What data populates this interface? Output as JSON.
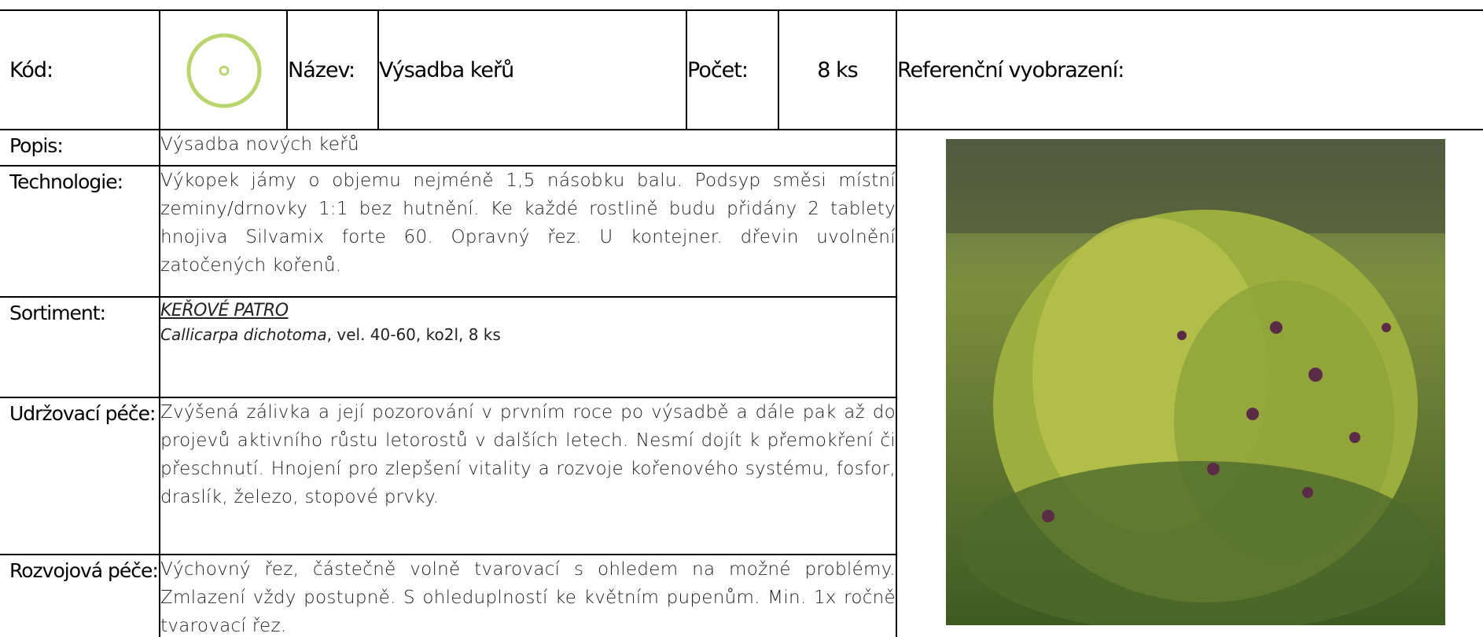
{
  "header": {
    "code_label": "Kód:",
    "name_label": "Název:",
    "name": "Výsadba keřů",
    "count_label": "Počet:",
    "count": "8 ks",
    "reference_label": "Referenční vyobrazení:"
  },
  "rows": [
    {
      "label": "Popis:",
      "text": "Výsadba nových keřů"
    },
    {
      "label": "Technologie:",
      "text": "Výkopek jámy o objemu nejméně 1,5 násobku balu. Podsyp směsi místní zeminy/drnovky 1:1 bez hutnění. Ke každé rostlině budu přidány 2 tablety hnojiva Silvamix forte 60. Opravný řez. U kontejner. dřevin uvolnění zatočených kořenů."
    },
    {
      "label": "Sortiment:",
      "heading": "KEŘOVÉ PATRO",
      "species": "Callicarpa dichotoma",
      "details": ", vel. 40-60, ko2l, 8 ks"
    },
    {
      "label": "Udržovací péče:",
      "text": "Zvýšená zálivka a její pozorování v prvním roce po výsadbě a dále pak až do projevů aktivního růstu letorostů v dalších letech. Nesmí dojít k přemokření či přeschnutí. Hnojení pro zlepšení vitality a rozvoje kořenového systému, fosfor, draslík, železo, stopové prvky."
    },
    {
      "label": "Rozvojová péče:",
      "text": "Výchovný řez, částečně volně tvarovací s ohledem na možné problémy. Zmlazení vždy postupně. S ohleduplností ke květním pupenům. Min. 1x ročně tvarovací řez."
    }
  ]
}
